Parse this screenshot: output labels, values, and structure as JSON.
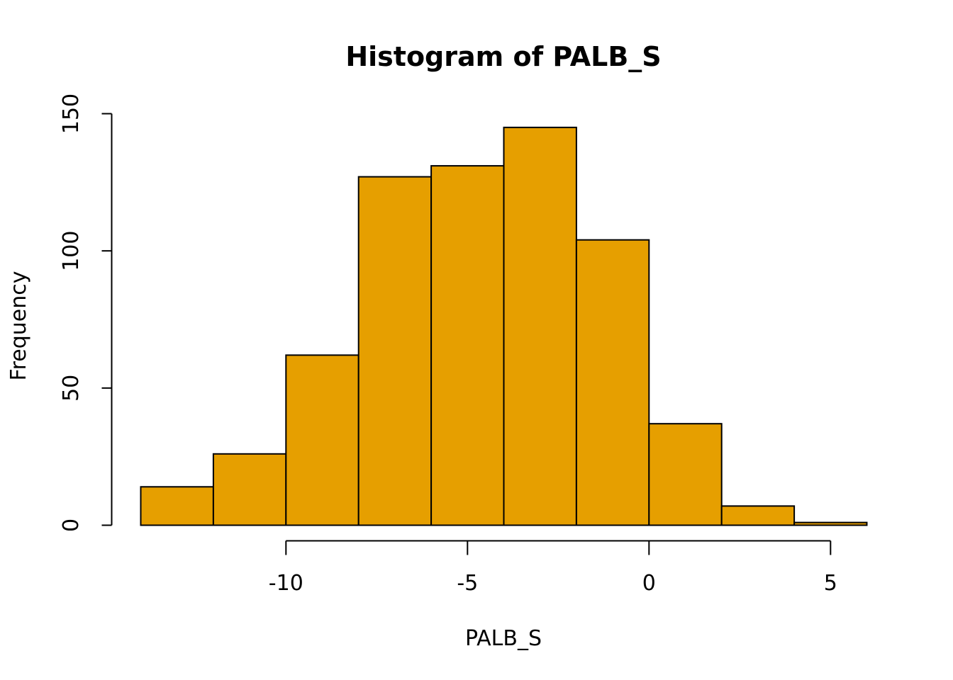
{
  "chart_data": {
    "type": "bar",
    "title": "Histogram of PALB_S",
    "xlabel": "PALB_S",
    "ylabel": "Frequency",
    "bin_edges": [
      -14,
      -12,
      -10,
      -8,
      -6,
      -4,
      -2,
      0,
      2,
      4,
      6
    ],
    "values": [
      14,
      26,
      62,
      127,
      131,
      145,
      104,
      37,
      7,
      1
    ],
    "xlim": [
      -14,
      6
    ],
    "ylim": [
      0,
      150
    ],
    "x_ticks": [
      -10,
      -5,
      0,
      5
    ],
    "x_tick_labels": [
      "-10",
      "-5",
      "0",
      "5"
    ],
    "y_ticks": [
      0,
      50,
      100,
      150
    ],
    "y_tick_labels": [
      "0",
      "50",
      "100",
      "150"
    ],
    "bar_color": "#E69F00",
    "grid": false
  }
}
